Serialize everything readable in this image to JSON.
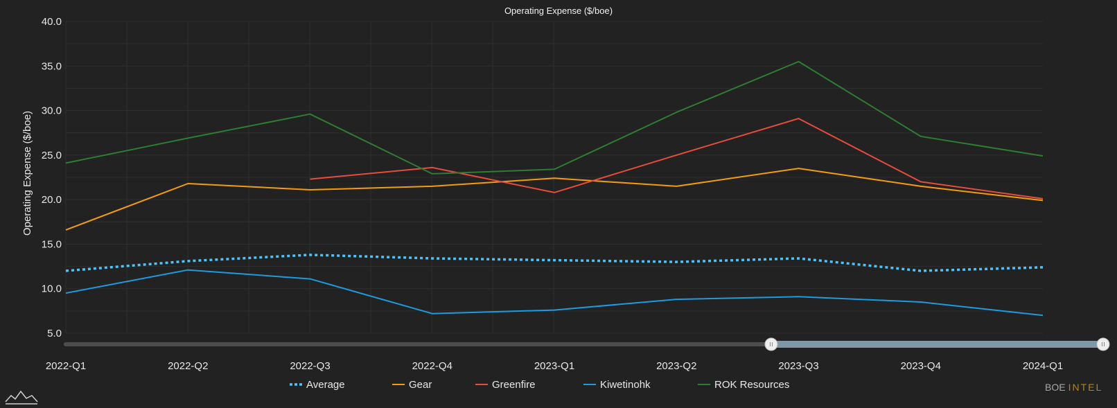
{
  "brand": {
    "part1": "BOE",
    "part2": "INTEL"
  },
  "colors": {
    "background": "#222222",
    "grid": "#2e2e2e",
    "Average": "#4fc3f7",
    "Gear": "#f39c12",
    "Greenfire": "#e74c3c",
    "Kiwetinohk": "#1e9be0",
    "ROK Resources": "#2e7d32",
    "slider_track": "#4d4d4d",
    "slider_selected": "#7f98a8"
  },
  "chart_data": {
    "type": "line",
    "title": "Operating Expense ($/boe)",
    "xlabel": "",
    "ylabel": "Operating Expense ($/boe)",
    "ylim": [
      5.0,
      40.0
    ],
    "yticks": [
      "5.0",
      "10.0",
      "15.0",
      "20.0",
      "25.0",
      "30.0",
      "35.0",
      "40.0"
    ],
    "categories": [
      "2022-Q1",
      "2022-Q2",
      "2022-Q3",
      "2022-Q4",
      "2023-Q1",
      "2023-Q2",
      "2023-Q3",
      "2023-Q4",
      "2024-Q1"
    ],
    "grid": true,
    "legend_position": "bottom",
    "series": [
      {
        "name": "Average",
        "style": "dotted",
        "values": [
          12.0,
          13.1,
          13.8,
          13.4,
          13.2,
          13.0,
          13.4,
          12.0,
          12.4
        ]
      },
      {
        "name": "Gear",
        "style": "solid",
        "values": [
          16.6,
          21.8,
          21.1,
          21.5,
          22.4,
          21.5,
          23.5,
          21.5,
          19.9
        ]
      },
      {
        "name": "Greenfire",
        "style": "solid",
        "values": [
          null,
          null,
          22.3,
          23.6,
          20.8,
          25.0,
          29.1,
          22.0,
          20.1
        ]
      },
      {
        "name": "Kiwetinohk",
        "style": "solid",
        "values": [
          9.5,
          12.1,
          11.1,
          7.2,
          7.6,
          8.8,
          9.1,
          8.5,
          7.0
        ]
      },
      {
        "name": "ROK Resources",
        "style": "solid",
        "values": [
          24.1,
          26.9,
          29.6,
          22.9,
          23.4,
          29.8,
          35.5,
          27.1,
          24.9
        ]
      }
    ],
    "slider": {
      "range_start_fraction": 0.68,
      "range_end_fraction": 1.0
    }
  }
}
